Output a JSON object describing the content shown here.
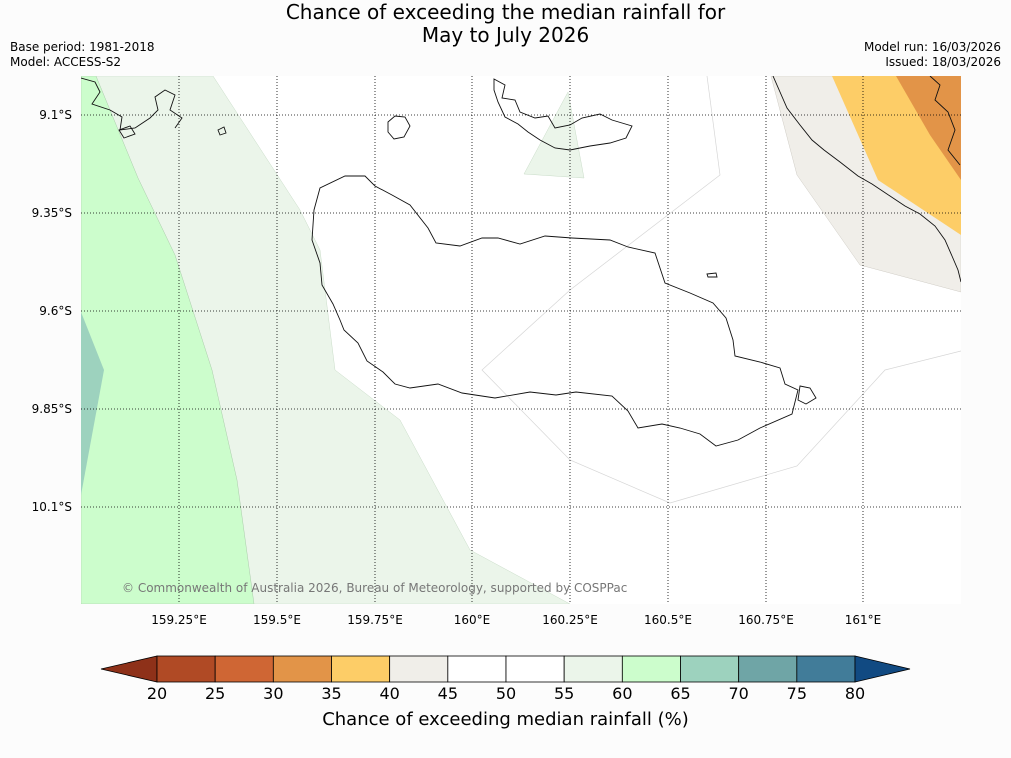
{
  "title_line1": "Chance of exceeding the median rainfall for",
  "title_line2": "May to July 2026",
  "meta": {
    "base_period": "Base period: 1981-2018",
    "model": "Model: ACCESS-S2",
    "model_run": "Model run: 16/03/2026",
    "issued": "Issued: 18/03/2026"
  },
  "map": {
    "lat_labels": [
      "9.1°S",
      "9.35°S",
      "9.6°S",
      "9.85°S",
      "10.1°S"
    ],
    "lon_labels": [
      "159.25°E",
      "159.5°E",
      "159.75°E",
      "160°E",
      "160.25°E",
      "160.5°E",
      "160.75°E",
      "161°E"
    ],
    "copyright": "© Commonwealth of Australia 2026, Bureau of Meteorology, supported by COSPPac"
  },
  "colorbar": {
    "ticks": [
      "20",
      "25",
      "30",
      "35",
      "40",
      "45",
      "50",
      "55",
      "60",
      "65",
      "70",
      "75",
      "80"
    ],
    "colors": [
      "#8e3119",
      "#b04a25",
      "#cf6634",
      "#e29448",
      "#fdcd67",
      "#f0eee9",
      "#ffffff",
      "#ffffff",
      "#ebf5ea",
      "#ccfdcc",
      "#9dd2be",
      "#6fa5a6",
      "#417c99",
      "#114a82"
    ],
    "title": "Chance of exceeding median rainfall (%)"
  }
}
